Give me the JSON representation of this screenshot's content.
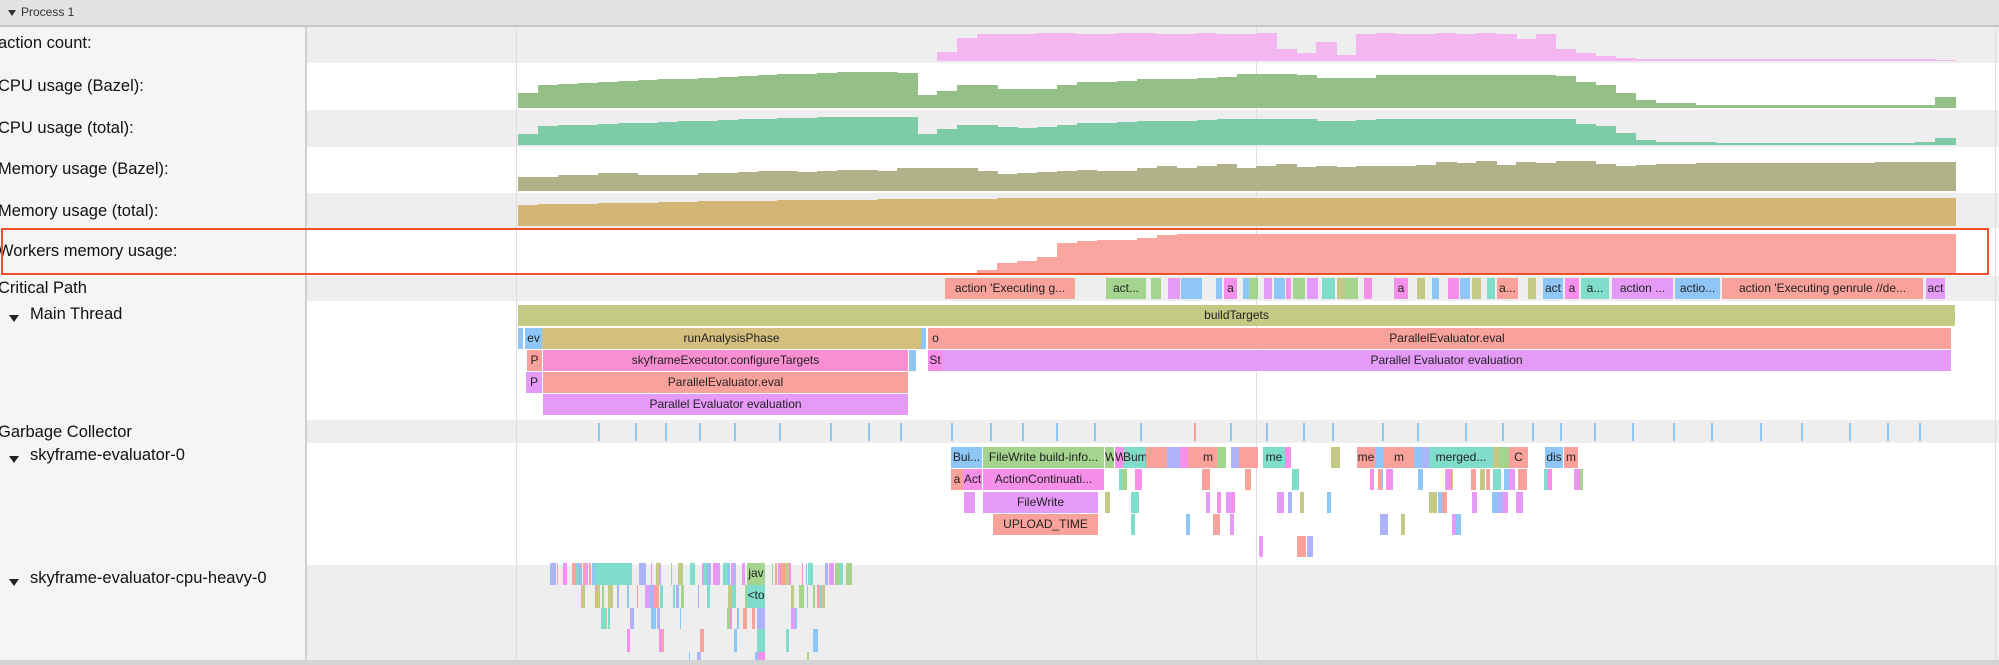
{
  "process": {
    "label": "Process 1"
  },
  "tracks": {
    "action_count": "action count:",
    "cpu_bazel": "CPU usage (Bazel):",
    "cpu_total": "CPU usage (total):",
    "mem_bazel": "Memory usage (Bazel):",
    "mem_total": "Memory usage (total):",
    "workers_mem": "Workers memory usage:",
    "critical_path": "Critical Path",
    "main_thread": "Main Thread",
    "gc": "Garbage Collector",
    "eval0": "skyframe-evaluator-0",
    "cpu_heavy": "skyframe-evaluator-cpu-heavy-0"
  },
  "counters": {
    "action_count": {
      "color": "#f4b6f1",
      "levels_pct": [
        0,
        0,
        0,
        0,
        0,
        0,
        0,
        0,
        0,
        0,
        0,
        0,
        0,
        0,
        0,
        0,
        0,
        0,
        0,
        0,
        0,
        30,
        75,
        88,
        86,
        88,
        90,
        89,
        88,
        87,
        89,
        90,
        88,
        86,
        89,
        88,
        87,
        89,
        40,
        25,
        60,
        20,
        88,
        89,
        87,
        88,
        90,
        88,
        89,
        86,
        70,
        88,
        40,
        25,
        15,
        10,
        6,
        5,
        5,
        5,
        5,
        5,
        5,
        5,
        5,
        5,
        5,
        5,
        5,
        5,
        5,
        4
      ]
    },
    "cpu_bazel": {
      "color": "#94c088",
      "levels_pct": [
        35,
        55,
        57,
        60,
        62,
        64,
        66,
        68,
        70,
        72,
        74,
        76,
        78,
        80,
        82,
        84,
        85,
        85,
        85,
        84,
        30,
        40,
        55,
        55,
        46,
        45,
        46,
        55,
        62,
        63,
        64,
        68,
        70,
        70,
        72,
        74,
        80,
        80,
        80,
        78,
        71,
        71,
        72,
        78,
        78,
        78,
        78,
        78,
        78,
        78,
        78,
        78,
        77,
        63,
        55,
        35,
        18,
        12,
        12,
        8,
        7,
        7,
        7,
        7,
        7,
        7,
        7,
        7,
        7,
        7,
        7,
        26
      ]
    },
    "cpu_total": {
      "color": "#7ecba8",
      "levels_pct": [
        35,
        60,
        62,
        64,
        66,
        68,
        70,
        72,
        74,
        76,
        78,
        80,
        82,
        83,
        85,
        86,
        87,
        87,
        87,
        86,
        35,
        50,
        62,
        62,
        55,
        54,
        56,
        62,
        68,
        70,
        72,
        74,
        76,
        76,
        78,
        80,
        82,
        82,
        82,
        80,
        76,
        76,
        78,
        80,
        80,
        80,
        80,
        80,
        80,
        80,
        80,
        80,
        80,
        66,
        58,
        38,
        16,
        10,
        10,
        8,
        7,
        6,
        6,
        6,
        6,
        6,
        6,
        6,
        7,
        7,
        8,
        22
      ]
    },
    "mem_bazel": {
      "color": "#b1b18a",
      "levels_pct": [
        35,
        35,
        38,
        38,
        45,
        45,
        40,
        40,
        38,
        44,
        44,
        46,
        50,
        50,
        46,
        48,
        52,
        52,
        50,
        55,
        55,
        56,
        56,
        50,
        42,
        44,
        46,
        50,
        52,
        48,
        50,
        55,
        60,
        55,
        62,
        66,
        56,
        60,
        66,
        58,
        62,
        58,
        62,
        60,
        62,
        64,
        70,
        68,
        74,
        64,
        70,
        68,
        72,
        74,
        66,
        60,
        64,
        66,
        66,
        68,
        68,
        68,
        68,
        68,
        69,
        69,
        69,
        69,
        70,
        70,
        70,
        70
      ]
    },
    "mem_total": {
      "color": "#d3b676",
      "levels_pct": [
        70,
        72,
        74,
        75,
        76,
        77,
        78,
        80,
        81,
        82,
        83,
        84,
        85,
        86,
        86,
        87,
        88,
        88,
        89,
        89,
        90,
        90,
        91,
        91,
        92,
        92,
        92,
        93,
        93,
        93,
        93,
        94,
        94,
        94,
        94,
        94,
        94,
        95,
        95,
        95,
        95,
        95,
        95,
        95,
        95,
        95,
        95,
        95,
        95,
        95,
        95,
        95,
        95,
        95,
        95,
        95,
        95,
        95,
        95,
        95,
        95,
        95,
        95,
        95,
        95,
        95,
        95,
        95,
        95,
        95,
        95,
        95
      ]
    },
    "workers_mem": {
      "color": "#f9a6a0",
      "levels_pct": [
        0,
        0,
        0,
        0,
        0,
        0,
        0,
        0,
        0,
        0,
        0,
        0,
        0,
        0,
        0,
        0,
        0,
        0,
        0,
        0,
        0,
        0,
        0,
        10,
        25,
        30,
        40,
        72,
        76,
        78,
        80,
        84,
        90,
        92,
        92,
        92,
        92,
        92,
        92,
        92,
        92,
        92,
        92,
        92,
        92,
        92,
        92,
        92,
        92,
        92,
        92,
        92,
        92,
        92,
        92,
        92,
        92,
        92,
        92,
        92,
        92,
        92,
        92,
        92,
        92,
        92,
        92,
        92,
        92,
        92,
        92,
        92
      ]
    }
  },
  "colors": {
    "salmon": "#f9a29b",
    "green": "#a4d48e",
    "blue": "#8fc6f8",
    "pink": "#f68fe9",
    "violet": "#e59af7",
    "teal": "#80dccb",
    "olive": "#c4c984",
    "tan": "#d4bf7e",
    "peri": "#adb3f9",
    "rose": "#f98fd2",
    "highlight": "#f0502a"
  },
  "critical_path_slices": [
    "action 'Executing g...",
    "act...",
    "a",
    "a",
    "a...",
    "act",
    "a",
    "a...",
    "action ...",
    "actio...",
    "action 'Executing genrule //de...",
    "act"
  ],
  "main_thread_slices": [
    "buildTargets",
    "ev",
    "runAnalysisPhase",
    "o",
    "ParallelEvaluator.eval",
    "P",
    "skyframeExecutor.configureTargets",
    "St",
    "Parallel Evaluator evaluation",
    "P",
    "ParallelEvaluator.eval",
    "Parallel Evaluator evaluation"
  ],
  "eval0_slices": [
    "Bui...",
    "FileWrite build-info...",
    "W",
    "W",
    "Bumer",
    "m",
    "me",
    "me",
    "m",
    "merged...",
    "C",
    "dis",
    "m",
    "a",
    "Act",
    "ActionContinuati...",
    "FileWrite",
    "UPLOAD_TIME"
  ],
  "cpu_heavy_slices": [
    "jav",
    "<to"
  ]
}
